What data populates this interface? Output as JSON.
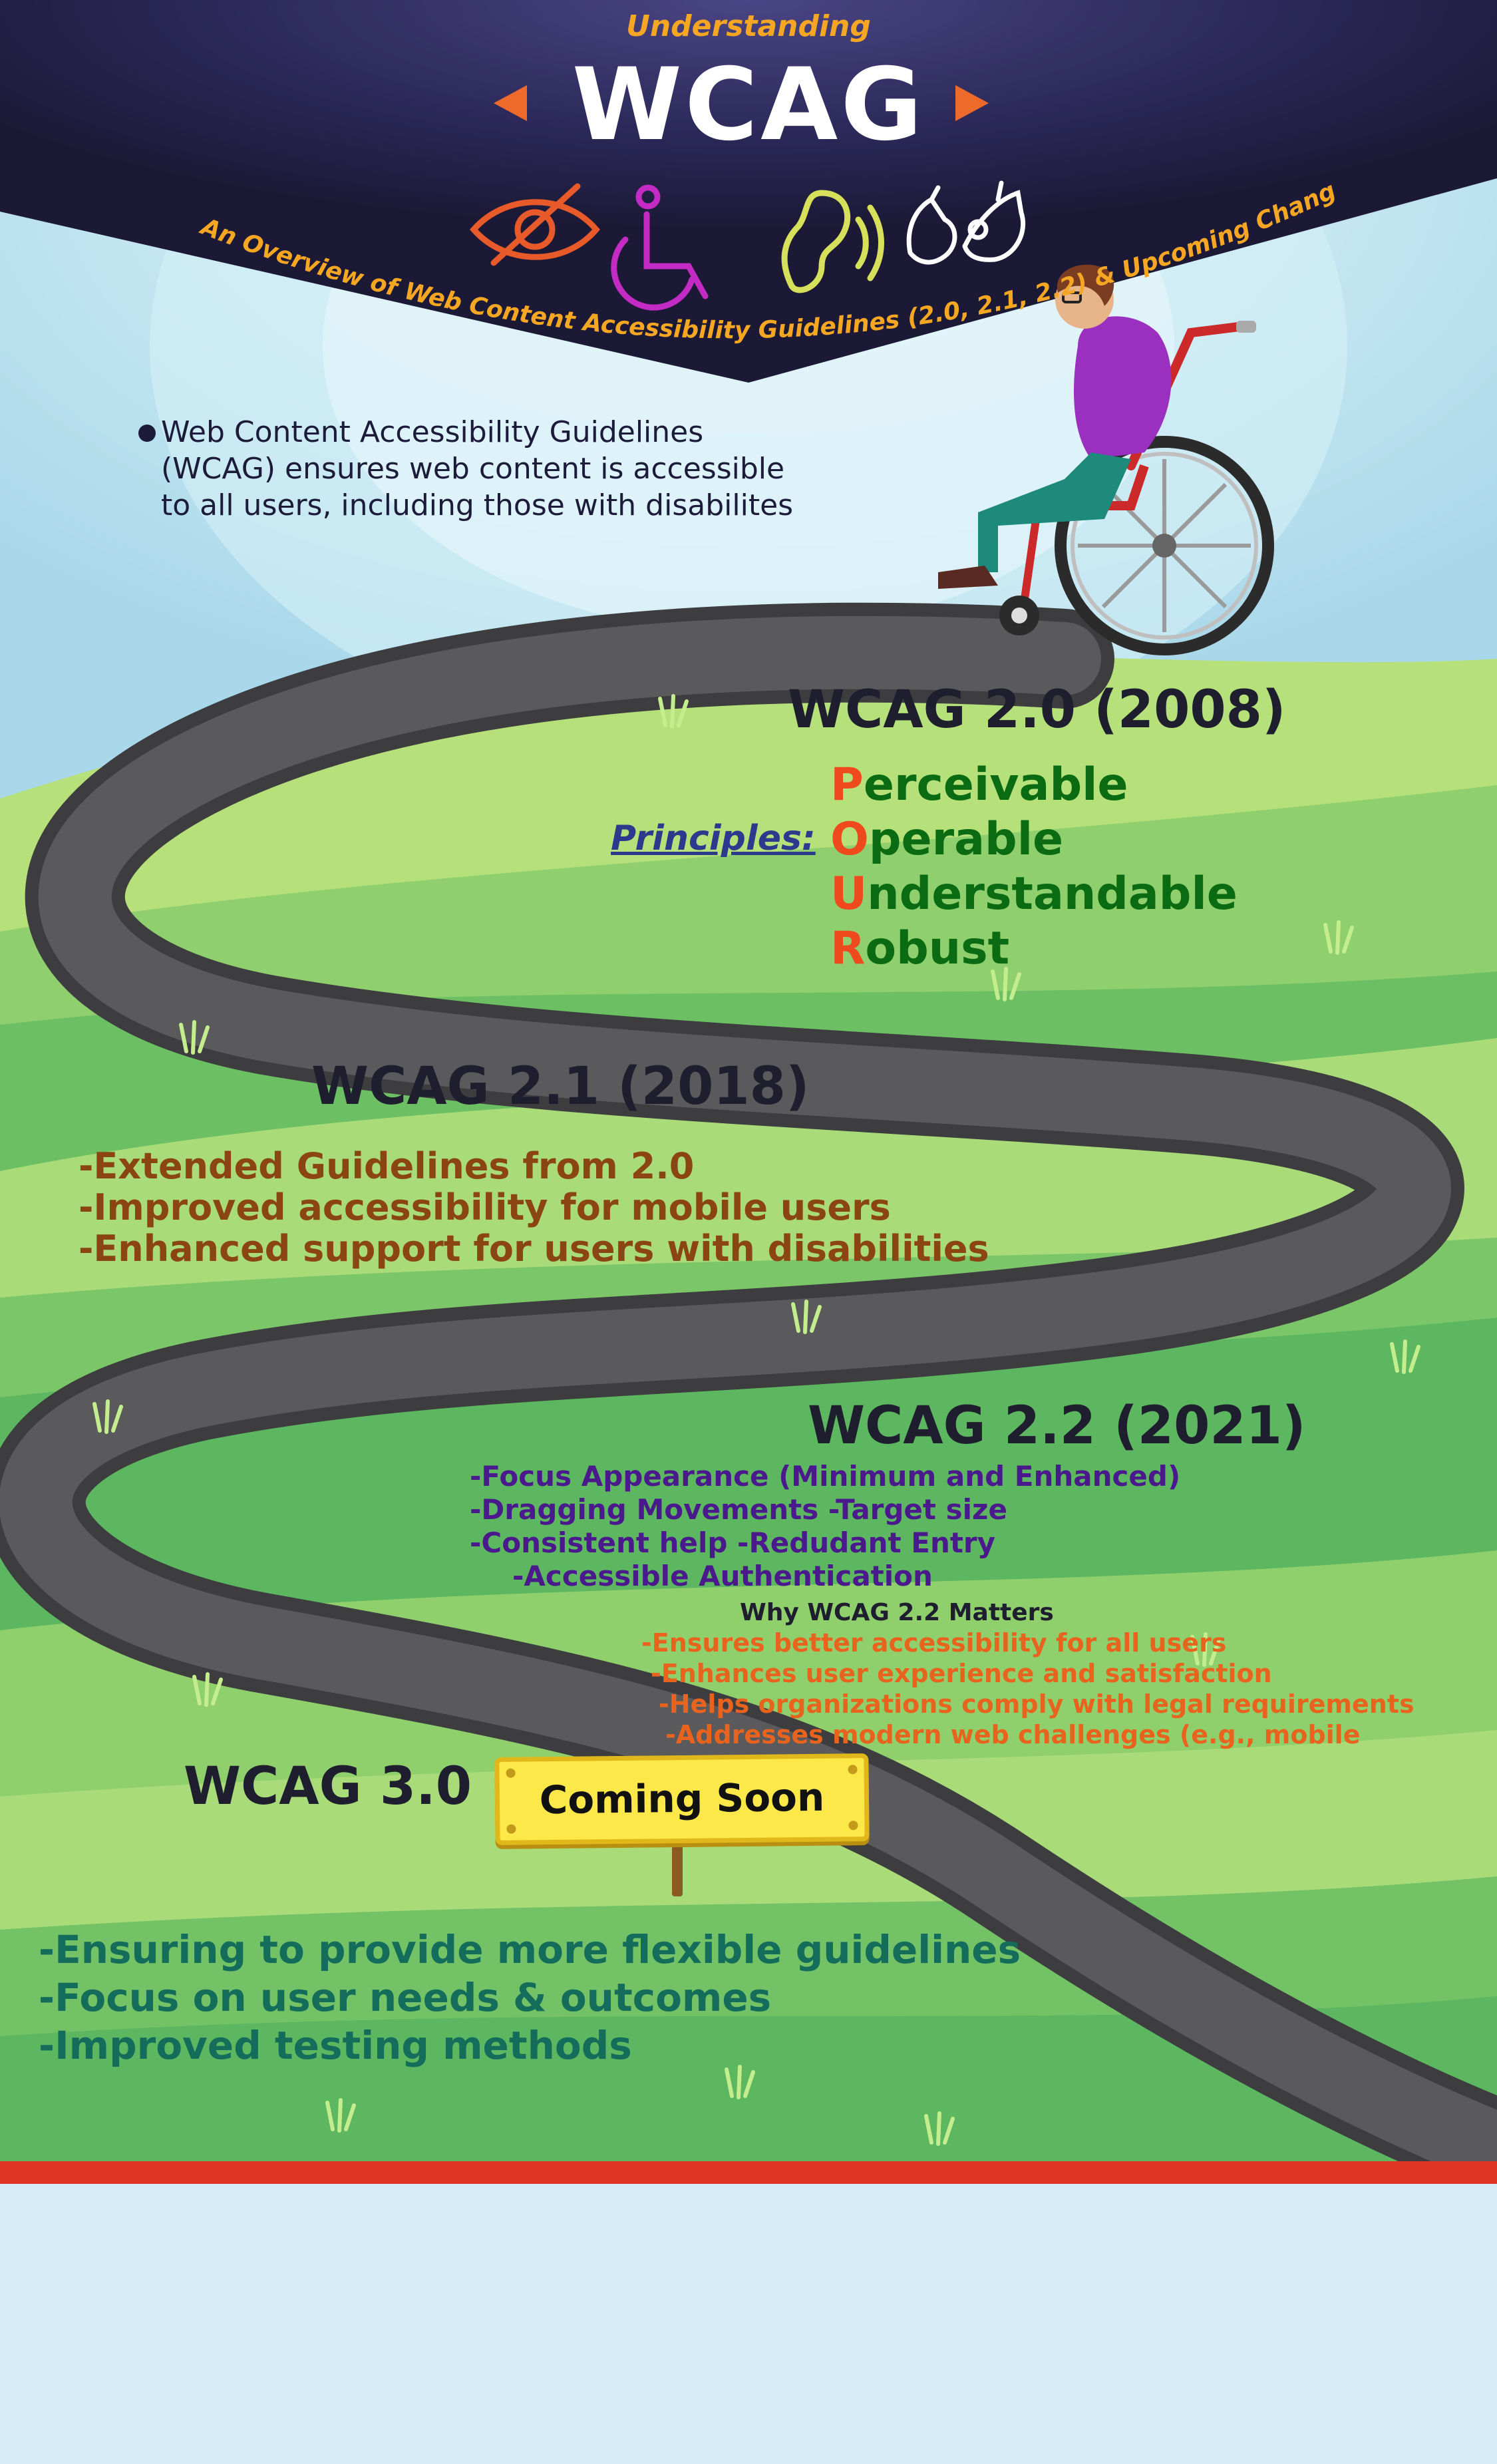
{
  "header": {
    "pretitle": "Understanding",
    "title": "WCAG",
    "subtitle": "An Overview of Web Content Accessibility  Guidelines (2.0, 2.1, 2.2) & Upcoming Changes"
  },
  "icons": [
    "eye-slash-icon",
    "wheelchair-icon",
    "ear-hearing-icon",
    "sign-language-icon"
  ],
  "intro": {
    "lines": [
      "Web Content Accessibility Guidelines",
      "(WCAG) ensures web content is accessible",
      "to all users, including those with disabilites"
    ]
  },
  "wcag20": {
    "heading": "WCAG 2.0 (2008)",
    "principles_label": "Principles:",
    "principles": [
      {
        "initial": "P",
        "rest": "erceivable"
      },
      {
        "initial": "O",
        "rest": "perable"
      },
      {
        "initial": "U",
        "rest": "nderstandable"
      },
      {
        "initial": "R",
        "rest": "obust"
      }
    ]
  },
  "wcag21": {
    "heading": "WCAG 2.1 (2018)",
    "items": [
      "-Extended Guidelines from 2.0",
      "-Improved accessibility for mobile users",
      "-Enhanced support for users with disabilities"
    ]
  },
  "wcag22": {
    "heading": "WCAG 2.2 (2021)",
    "items": [
      "-Focus Appearance (Minimum and Enhanced)",
      "-Dragging Movements  -Target size",
      "-Consistent help -Redudant Entry",
      "-Accessible Authentication"
    ],
    "why_heading": "Why WCAG 2.2 Matters",
    "why_items": [
      "-Ensures better accessibility for all users",
      "-Enhances user experience and satisfaction",
      "-Helps organizations comply with legal requirements",
      "-Addresses modern web challenges (e.g., mobile accessibility"
    ]
  },
  "wcag30": {
    "heading": "WCAG 3.0",
    "sign": "Coming Soon",
    "items": [
      "-Ensuring to provide more flexible guidelines",
      "-Focus on user needs & outcomes",
      "-Improved testing methods"
    ]
  },
  "colors": {
    "navy": "#1d1b3d",
    "orange": "#f5a623",
    "sky": "#c5e8f4",
    "grass_light": "#b3e07a",
    "grass_dark": "#5fb863",
    "road": "#4d4d4f",
    "heading": "#1e1e2e",
    "brown": "#8b4513",
    "purple": "#4a1a8c",
    "red_orange": "#e8641e",
    "teal": "#146c5a",
    "red_band": "#e03424"
  }
}
